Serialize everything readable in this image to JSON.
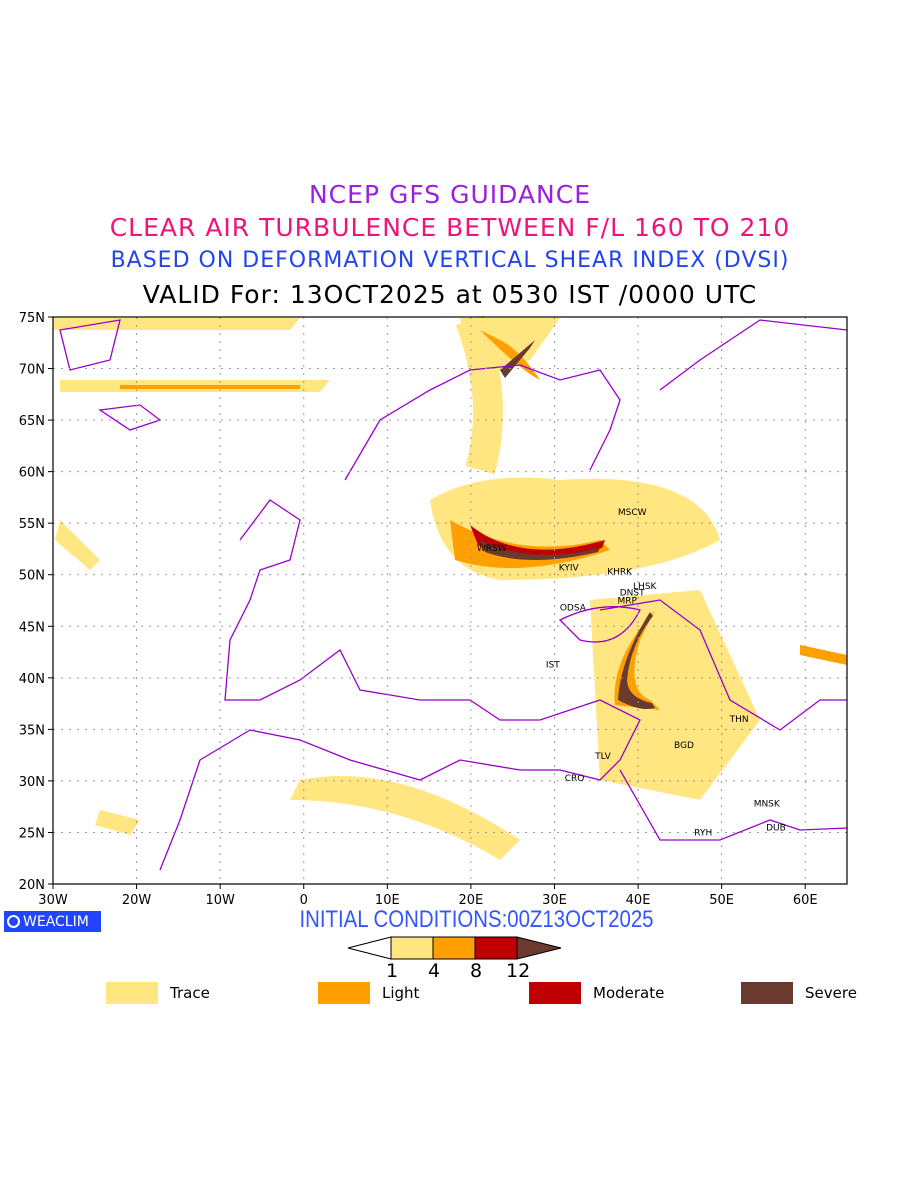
{
  "titles": {
    "line1": "NCEP GFS GUIDANCE",
    "line2": "CLEAR AIR TURBULENCE BETWEEN F/L 160 TO 210",
    "line3": "BASED ON DEFORMATION VERTICAL SHEAR INDEX (DVSI)",
    "line4": "VALID For: 13OCT2025 at 0530 IST /0000 UTC"
  },
  "axes": {
    "lon_labels": [
      "30W",
      "20W",
      "10W",
      "0",
      "10E",
      "20E",
      "30E",
      "40E",
      "50E",
      "60E"
    ],
    "lat_labels": [
      "75N",
      "70N",
      "65N",
      "60N",
      "55N",
      "50N",
      "45N",
      "40N",
      "35N",
      "30N",
      "25N",
      "20N"
    ],
    "lon_range": [
      -30,
      65
    ],
    "lat_range": [
      20,
      75
    ]
  },
  "cities": [
    {
      "name": "MSCW",
      "lon": 39.3,
      "lat": 56.1
    },
    {
      "name": "WRSW",
      "lon": 22.5,
      "lat": 52.6
    },
    {
      "name": "KYIV",
      "lon": 31.7,
      "lat": 50.7
    },
    {
      "name": "KHRK",
      "lon": 37.8,
      "lat": 50.3
    },
    {
      "name": "LHSK",
      "lon": 40.8,
      "lat": 48.9
    },
    {
      "name": "DNST",
      "lon": 39.3,
      "lat": 48.3
    },
    {
      "name": "MRP",
      "lon": 38.7,
      "lat": 47.5
    },
    {
      "name": "ODSA",
      "lon": 32.2,
      "lat": 46.8
    },
    {
      "name": "IST",
      "lon": 29.8,
      "lat": 41.3
    },
    {
      "name": "TLV",
      "lon": 35.8,
      "lat": 32.4
    },
    {
      "name": "CRO",
      "lon": 32.4,
      "lat": 30.3
    },
    {
      "name": "BGD",
      "lon": 45.5,
      "lat": 33.5
    },
    {
      "name": "THN",
      "lon": 52.1,
      "lat": 36.0
    },
    {
      "name": "MNSK",
      "lon": 55.4,
      "lat": 27.8
    },
    {
      "name": "DUB",
      "lon": 56.5,
      "lat": 25.5
    },
    {
      "name": "RYH",
      "lon": 47.8,
      "lat": 25.0
    }
  ],
  "logo": "WEACLIM",
  "initial_conditions": "INITIAL CONDITIONS:00Z13OCT2025",
  "colorbar": {
    "ticks": [
      "1",
      "4",
      "8",
      "12"
    ]
  },
  "legend": [
    {
      "label": "Trace",
      "color": "#ffe680"
    },
    {
      "label": "Light",
      "color": "#ffa000"
    },
    {
      "label": "Moderate",
      "color": "#c00000"
    },
    {
      "label": "Severe",
      "color": "#6b3a2e"
    }
  ]
}
